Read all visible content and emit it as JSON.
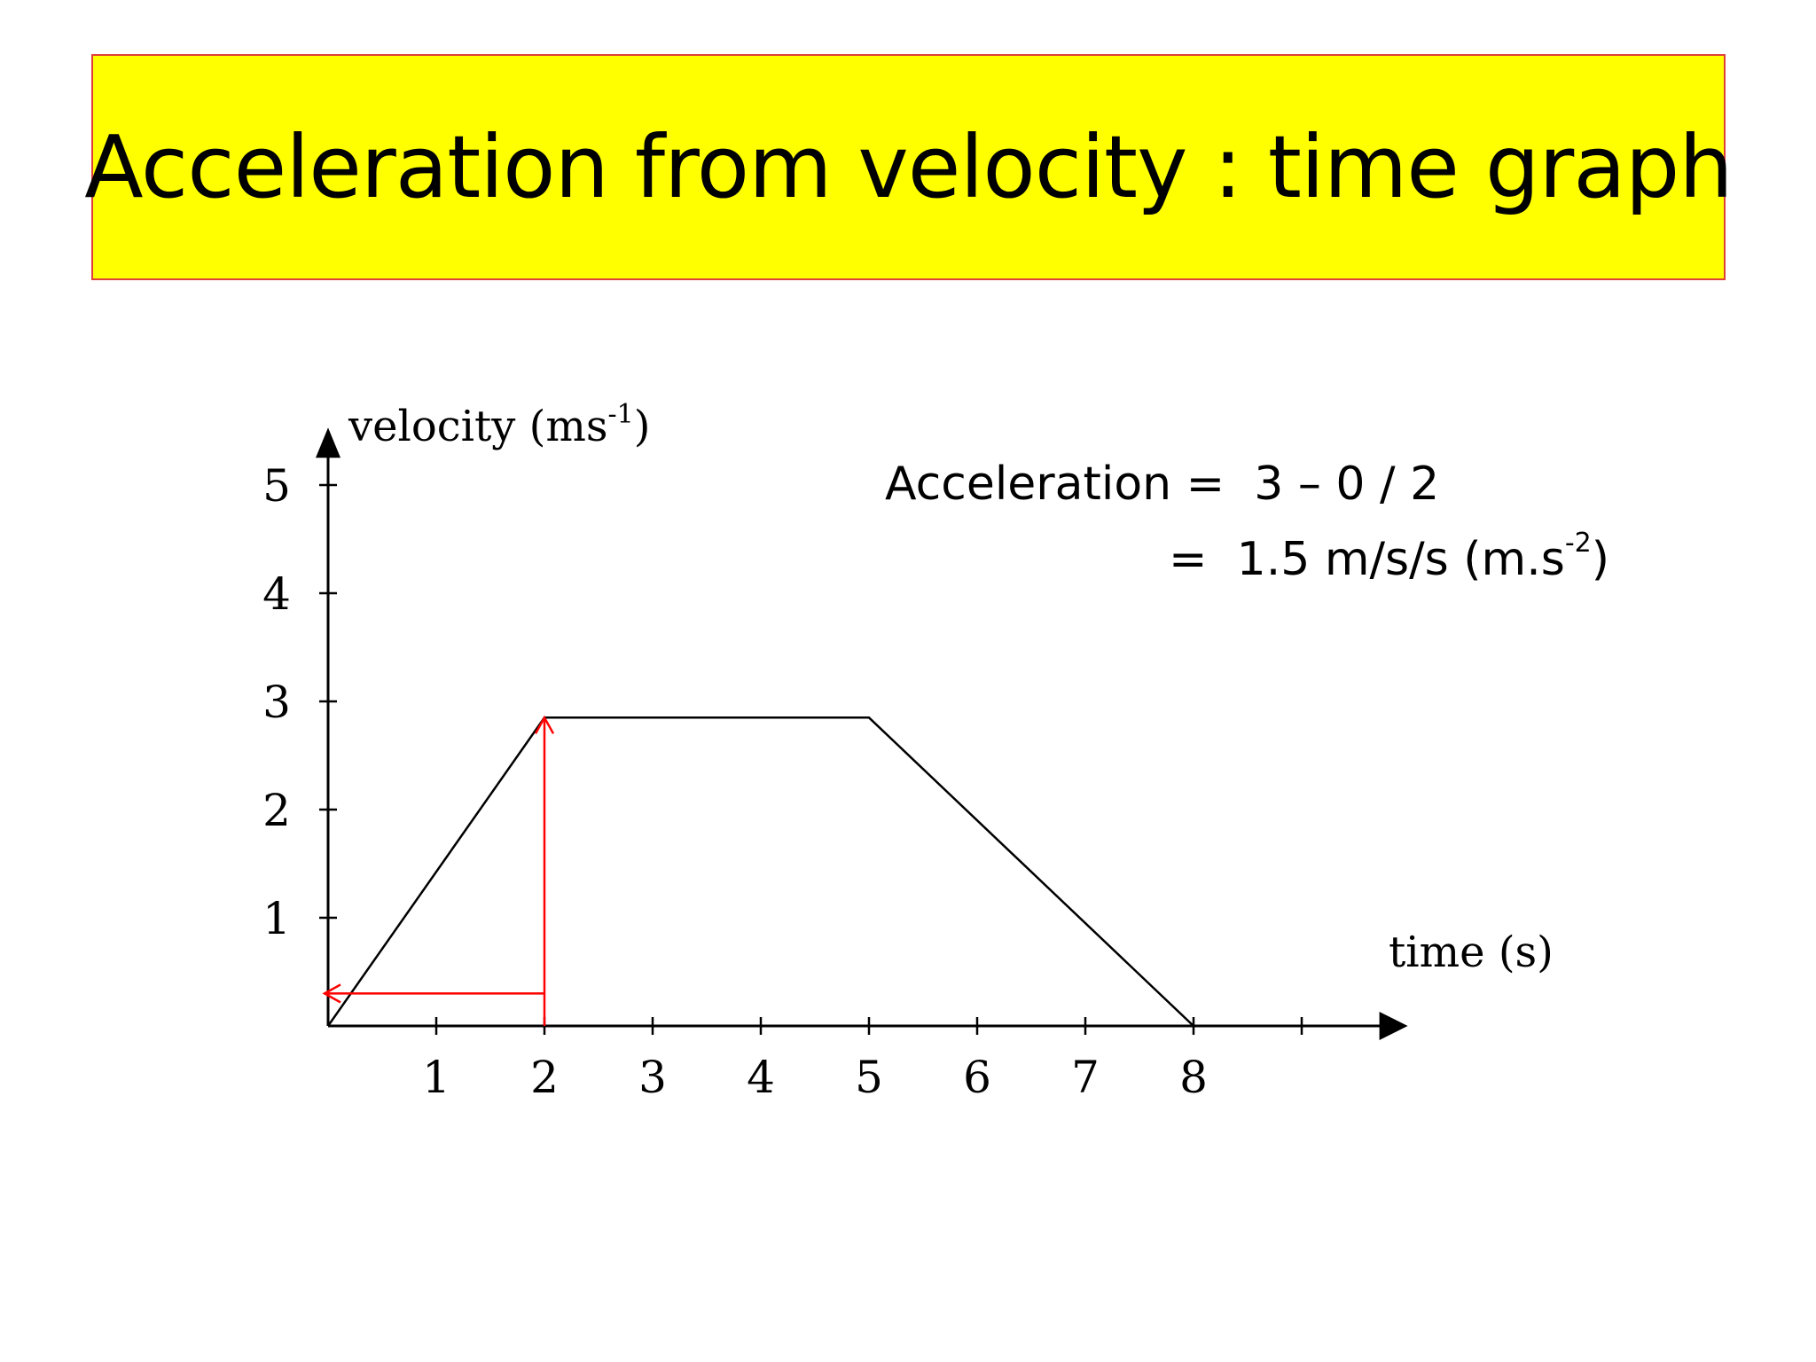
{
  "slide": {
    "title": "Acceleration from velocity : time graph",
    "colors": {
      "title_background": "#ffff00",
      "title_border": "#e0403a",
      "annotation": "#ff0000",
      "line": "#000000"
    },
    "formula": {
      "line1_prefix": "Acceleration = ",
      "line1_value": "3 – 0 / 2",
      "line2_prefix": "= ",
      "line2_value": "1.5 m/s/s (m.s",
      "line2_sup": "-2",
      "line2_suffix": ")"
    }
  },
  "chart_data": {
    "type": "line",
    "xlabel": "time (s)",
    "ylabel_base": "velocity (ms",
    "ylabel_sup": "-1",
    "ylabel_end": ")",
    "x_ticks": [
      1,
      2,
      3,
      4,
      5,
      6,
      7,
      8
    ],
    "x_tick_labels": [
      "1",
      "2",
      "3",
      "4",
      "5",
      "6",
      "7",
      "8"
    ],
    "x_extra_tick": 9,
    "y_ticks": [
      1,
      2,
      3,
      4,
      5
    ],
    "y_tick_labels": [
      "1",
      "2",
      "3",
      "4",
      "5"
    ],
    "xlim": [
      0,
      9.8
    ],
    "ylim": [
      0,
      5.4
    ],
    "series": [
      {
        "points": [
          [
            0,
            0
          ],
          [
            2,
            2.85
          ],
          [
            5,
            2.85
          ],
          [
            8,
            0
          ]
        ]
      }
    ],
    "annotations": {
      "vertical_arrow": {
        "x": 2,
        "from_y": 0,
        "to_y": 2.85
      },
      "horizontal_arrow": {
        "y": 0.3,
        "from_x": 2,
        "to_x": 0
      }
    },
    "grid": false
  }
}
